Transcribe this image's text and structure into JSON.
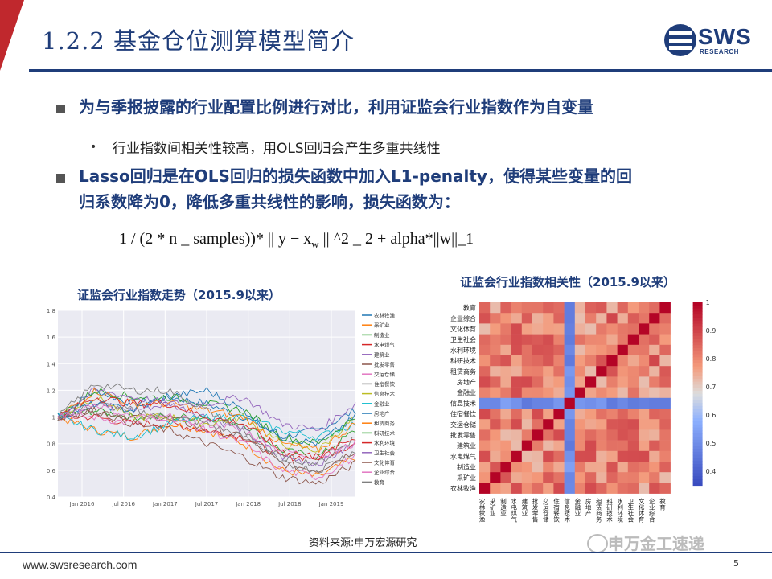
{
  "slide": {
    "title": "1.2.2 基金仓位测算模型简介",
    "bullets": [
      {
        "text": "为与季报披露的行业配置比例进行对比，利用证监会行业指数作为自变量"
      },
      {
        "text": "行业指数间相关性较高，用OLS回归会产生多重共线性"
      },
      {
        "text_line1": "Lasso回归是在OLS回归的损失函数中加入L1-penalty，使得某些变量的回",
        "text_line2": "归系数降为0，降低多重共线性的影响，损失函数为："
      }
    ],
    "formula": "1 / (2 * n _ samples))* || y − x",
    "formula_sub": "w",
    "formula_tail": " || ^2 _ 2 + alpha*||w||_1",
    "left_caption": "证监会行业指数走势（2015.9以来）",
    "right_caption": "证监会行业指数相关性（2015.9以来）",
    "source": "资料来源:申万宏源研究",
    "footer_url": "www.swsresearch.com",
    "page_number": "5",
    "watermark": "申万金工速递",
    "logo_text": "SWS",
    "logo_sub": "RESEARCH"
  },
  "chart_data": [
    {
      "type": "line",
      "title": "",
      "x_ticks": [
        "Jan 2016",
        "Jul 2016",
        "Jan 2017",
        "Jul 2017",
        "Jan 2018",
        "Jul 2018",
        "Jan 2019"
      ],
      "y_ticks": [
        "0.4",
        "0.6",
        "0.8",
        "1",
        "1.2",
        "1.4",
        "1.6",
        "1.8"
      ],
      "ylim": [
        0.4,
        1.8
      ],
      "grid": true,
      "legend_position": "right",
      "series": [
        {
          "name": "农林牧渔",
          "color": "#1f77b4",
          "values": [
            1.0,
            1.2,
            1.1,
            1.15,
            1.1,
            1.0,
            0.85,
            0.9,
            1.05
          ]
        },
        {
          "name": "采矿业",
          "color": "#ff7f0e",
          "values": [
            1.0,
            0.9,
            0.85,
            0.95,
            0.9,
            0.8,
            0.6,
            0.55,
            0.7
          ]
        },
        {
          "name": "制造业",
          "color": "#2ca02c",
          "values": [
            1.0,
            1.05,
            1.0,
            1.0,
            1.0,
            0.95,
            0.75,
            0.7,
            0.9
          ]
        },
        {
          "name": "水电煤气",
          "color": "#d62728",
          "values": [
            1.0,
            1.0,
            0.95,
            0.95,
            0.9,
            0.85,
            0.7,
            0.7,
            0.8
          ]
        },
        {
          "name": "建筑业",
          "color": "#9467bd",
          "values": [
            1.0,
            1.1,
            1.05,
            1.1,
            1.0,
            0.9,
            0.7,
            0.65,
            0.8
          ]
        },
        {
          "name": "批发零售",
          "color": "#8c564b",
          "values": [
            1.0,
            1.05,
            1.0,
            1.0,
            0.9,
            0.85,
            0.65,
            0.6,
            0.75
          ]
        },
        {
          "name": "交运仓储",
          "color": "#e377c2",
          "values": [
            1.0,
            1.0,
            0.95,
            1.0,
            0.95,
            0.9,
            0.75,
            0.7,
            0.8
          ]
        },
        {
          "name": "住宿餐饮",
          "color": "#7f7f7f",
          "values": [
            1.0,
            1.1,
            1.05,
            1.0,
            0.95,
            0.85,
            0.7,
            0.65,
            0.85
          ]
        },
        {
          "name": "信息技术",
          "color": "#bcbd22",
          "values": [
            1.0,
            1.15,
            1.0,
            1.0,
            0.95,
            1.0,
            0.8,
            0.75,
            1.0
          ]
        },
        {
          "name": "金融业",
          "color": "#17becf",
          "values": [
            1.0,
            0.9,
            0.85,
            0.95,
            1.0,
            1.0,
            0.9,
            0.85,
            0.95
          ]
        },
        {
          "name": "房地产",
          "color": "#1f77b4",
          "values": [
            1.0,
            1.1,
            1.05,
            1.15,
            1.2,
            1.05,
            0.85,
            0.8,
            1.0
          ]
        },
        {
          "name": "租赁商务",
          "color": "#ff7f0e",
          "values": [
            1.0,
            1.2,
            1.1,
            1.1,
            1.05,
            1.0,
            0.8,
            0.75,
            0.95
          ]
        },
        {
          "name": "科研技术",
          "color": "#2ca02c",
          "values": [
            1.0,
            1.2,
            1.15,
            1.15,
            1.1,
            1.05,
            0.85,
            0.8,
            1.0
          ]
        },
        {
          "name": "水利环境",
          "color": "#d62728",
          "values": [
            1.0,
            1.15,
            1.1,
            1.1,
            1.0,
            0.95,
            0.75,
            0.7,
            0.85
          ]
        },
        {
          "name": "卫生社会",
          "color": "#9467bd",
          "values": [
            1.0,
            1.2,
            1.15,
            1.1,
            1.1,
            1.15,
            0.95,
            0.9,
            1.1
          ]
        },
        {
          "name": "文化体育",
          "color": "#8c564b",
          "values": [
            1.0,
            1.05,
            0.95,
            0.9,
            0.8,
            0.7,
            0.55,
            0.5,
            0.65
          ]
        },
        {
          "name": "企业综合",
          "color": "#e377c2",
          "values": [
            1.0,
            1.1,
            1.0,
            1.0,
            0.9,
            0.8,
            0.6,
            0.55,
            0.7
          ]
        },
        {
          "name": "教育",
          "color": "#7f7f7f",
          "values": [
            1.0,
            1.25,
            1.2,
            1.2,
            1.05,
            0.9,
            0.65,
            0.6,
            0.75
          ]
        }
      ]
    },
    {
      "type": "heatmap",
      "title": "",
      "row_labels": [
        "教育",
        "企业综合",
        "文化体育",
        "卫生社会",
        "水利环境",
        "科研技术",
        "租赁商务",
        "房地产",
        "金融业",
        "信息技术",
        "住宿餐饮",
        "交运仓储",
        "批发零售",
        "建筑业",
        "水电煤气",
        "制造业",
        "采矿业",
        "农林牧渔"
      ],
      "col_labels": [
        "农林牧渔",
        "采矿业",
        "制造业",
        "水电煤气",
        "建筑业",
        "批发零售",
        "交运仓储",
        "住宿餐饮",
        "信息技术",
        "金融业",
        "房地产",
        "租赁商务",
        "科研技术",
        "水利环境",
        "卫生社会",
        "文化体育",
        "企业综合",
        "教育"
      ],
      "colorbar_ticks": [
        "1",
        "0.9",
        "0.8",
        "0.7",
        "0.6",
        "0.5",
        "0.4"
      ],
      "value_range": [
        0.35,
        1.0
      ],
      "note": "symmetric correlation matrix; diagonal = 1"
    }
  ]
}
